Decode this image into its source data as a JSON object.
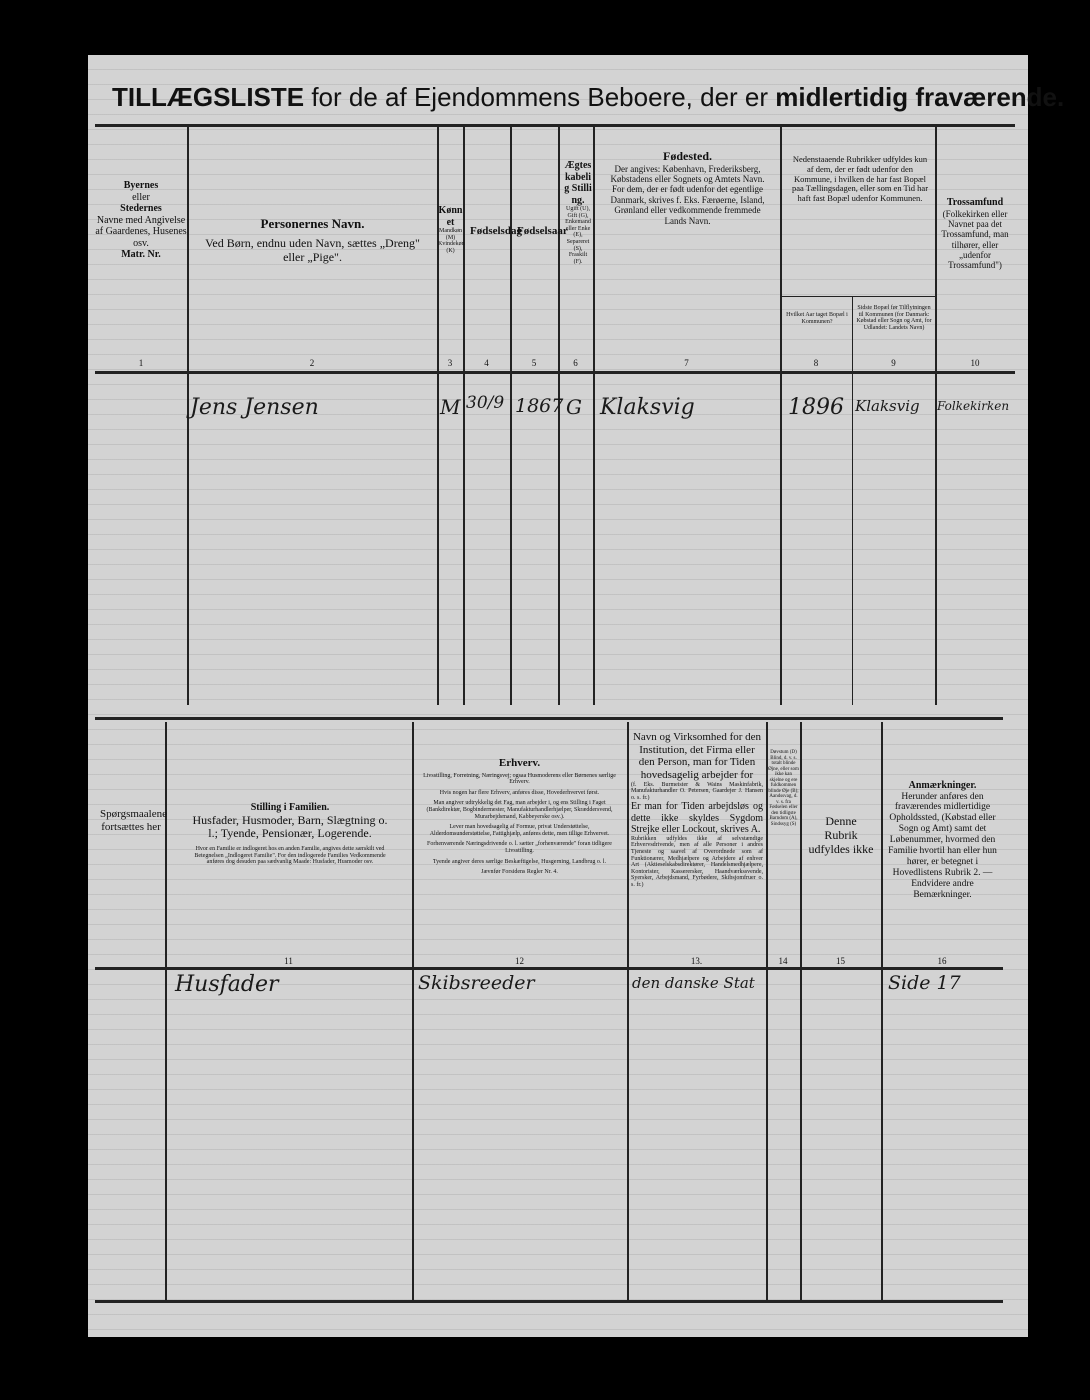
{
  "title": {
    "part1": "TILLÆGSLISTE",
    "part2": " for de af Ejendommens Beboere, der er ",
    "part3": "midlertidig fraværende."
  },
  "top_headers": [
    {
      "num": "1",
      "bold1": "Byernes",
      "t1": "eller",
      "bold2": "Stedernes",
      "t2": "Navne med Angivelse af Gaardenes, Husenes osv.",
      "bold3": "Matr. Nr."
    },
    {
      "num": "2",
      "bold": "Personernes Navn.",
      "text": "Ved Børn, endnu uden Navn, sættes „Dreng\" eller „Pige\"."
    },
    {
      "num": "3",
      "bold": "Kønnet",
      "text": "Mandkøn (M) Kvindekøn (K)"
    },
    {
      "num": "4",
      "bold": "Fødselsdag"
    },
    {
      "num": "5",
      "bold": "Fødselsaar"
    },
    {
      "num": "6",
      "bold": "Ægteskabelig Stilling.",
      "text": "Ugift (U), Gift (G), Enkemand eller Enke (E), Separeret (S), Fraskilt (F)."
    },
    {
      "num": "7",
      "bold": "Fødested.",
      "text": "Der angives: København, Frederiksberg, Købstadens eller Sognets og Amtets Navn. For dem, der er født udenfor det egentlige Danmark, skrives f. Eks. Færøerne, Island, Grønland eller vedkommende fremmede Lands Navn."
    },
    {
      "num": "8",
      "text": "Hvilket Aar taget Bopæl i Kommunen?"
    },
    {
      "num": "9",
      "text": "Sidste Bopæl før Tilflytningen til Kommunen (for Danmark: Købstad eller Sogn og Amt, for Udlandet: Landets Navn)"
    },
    {
      "num": "10",
      "bold": "Trossamfund",
      "text": "(Folkekirken eller Navnet paa det Trossamfund, man tilhører, eller „udenfor Trossamfund\")"
    }
  ],
  "col89_note": "Nedenstaaende Rubrikker udfyldes kun af dem, der er født udenfor den Kommune, i hvilken de har fast Bopæl paa Tællingsdagen, eller som en Tid har haft fast Bopæl udenfor Kommunen.",
  "top_row": {
    "name": "Jens Jensen",
    "sex": "M",
    "birthday": "30/9",
    "birthyear": "1867",
    "marital": "G",
    "birthplace": "Klaksvig",
    "year_moved": "1896",
    "last_residence": "Klaksvig",
    "religion": "Folkekirken"
  },
  "bottom_headers": [
    {
      "text": "Spørgsmaalene fortsættes her"
    },
    {
      "num": "11",
      "bold": "Stilling i Familien.",
      "text": "Husfader, Husmoder, Barn, Slægtning o. l.; Tyende, Pensionær, Logerende.",
      "note": "Hvor en Familie er indlogeret hos en anden Familie, angives dette særskilt ved Betegnelsen „Indlogeret Familie\". For den indlogerede Families Vedkommende anføres dog desuden paa sædvanlig Maade: Husfader, Husmoder osv."
    },
    {
      "num": "12",
      "bold": "Erhverv.",
      "notes": [
        "Livsstilling, Forretning, Næringsvej; ogsaa Husmoderens eller Børnenes særlige Erhverv.",
        "Hvis nogen har flere Erhverv, anføres disse, Hovederhvervet først.",
        "Man angiver udtrykkelig det Fag, man arbejder i, og ens Stilling i Faget (Bankdirektør, Bogbindermester, Manufakturhandlerhjælper, Skræddersvend, Murarbejdsmand, Kabbeyerske osv.).",
        "Lever man hovedsagelig af Formue, privat Understøttelse, Alderdomsunderstøttelse, Fattighjælp, anføres dette, men tillige Erhvervet.",
        "Forhenværende Næringsdrivende o. l. sætter „forhenværende\" foran tidligere Livsstilling.",
        "Tyende angiver deres særlige Beskæftigelse, Husgerning, Landbrug o. l.",
        "Jævnfør Forsidens Regler Nr. 4."
      ]
    },
    {
      "num": "13.",
      "text": "Navn og Virksomhed for den Institution, det Firma eller den Person, man for Tiden hovedsagelig arbejder for",
      "note1": "(f. Eks. Burmeister & Wains Maskinfabrik, Manufakturhandler O. Petersen, Gaardejer J. Hansen o. s. fr.)",
      "text2": "Er man for Tiden arbejdsløs og dette ikke skyldes Sygdom Strejke eller Lockout, skrives A.",
      "note2": "Rubrikken udfyldes ikke af selvstændige Erhvervsdrivende, men af alle Personer i andres Tjeneste og saavel af Overordnede som af Funktionærer, Medhjælpere og Arbejdere af enhver Art (Aktieselskabsdirektører, Handelsmedhjælpere, Kontorister, Kasserersker, Haandværkssvende, Syersker, Arbejdsmand, Fyrbødere, Skibsjomfruer o. s. fr.)"
    },
    {
      "num": "14",
      "text": "Døvstum (D) Blind, d. v. s. totalt blinde Øjne, eller som ikke kan skjelne og ere fuldkommen blinde Øje (B); Aandssvag, d. v. s. fra Fødselen eller den tidligste Barndom (A), Sindssyg (S)"
    },
    {
      "num": "15",
      "text": "Denne Rubrik udfyldes ikke"
    },
    {
      "num": "16",
      "bold": "Anmærkninger.",
      "text": "Herunder anføres den fraværendes midlertidige Opholdssted, (Købstad eller Sogn og Amt) samt det Løbenummer, hvormed den Familie hvortil han eller hun hører, er betegnet i Hovedlistens Rubrik 2. — Endvidere andre Bemærkninger."
    }
  ],
  "bottom_row": {
    "family_position": "Husfader",
    "occupation": "Skibsreeder",
    "employer": "den danske Stat",
    "remarks": "Side 17"
  }
}
